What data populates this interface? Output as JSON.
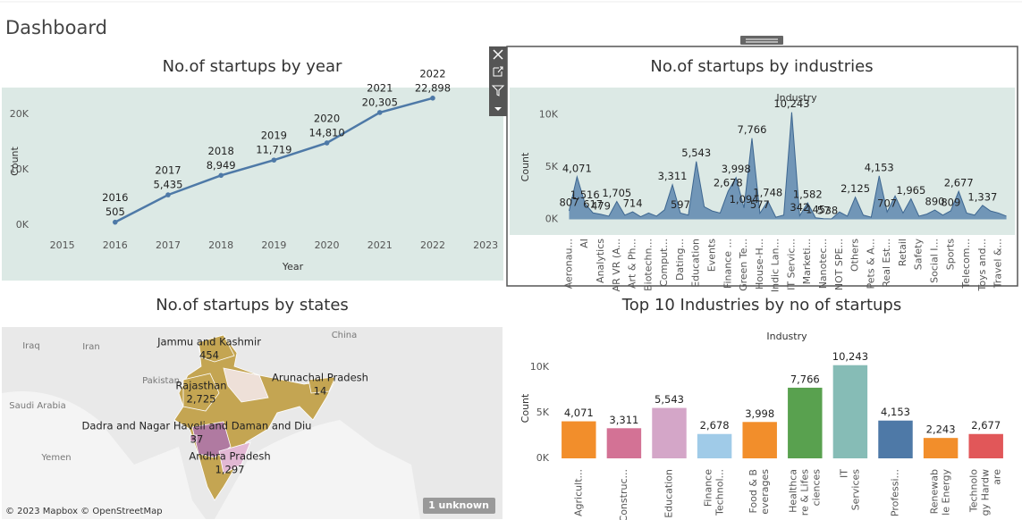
{
  "title": "Dashboard",
  "chart_data": [
    {
      "type": "line",
      "title": "No.of startups by year",
      "x_label": "Year",
      "y_label": "Count",
      "x": [
        2016,
        2017,
        2018,
        2019,
        2020,
        2021,
        2022
      ],
      "values": [
        505,
        5435,
        8949,
        11719,
        14810,
        20305,
        22898
      ],
      "value_labels": [
        "505",
        "5,435",
        "8,949",
        "11,719",
        "14,810",
        "20,305",
        "22,898"
      ],
      "color": "#4e79a7",
      "background": "#dce9e5",
      "xlim": [
        2014.5,
        2023.2
      ],
      "xticks": [
        2015,
        2016,
        2017,
        2018,
        2019,
        2020,
        2021,
        2022,
        2023
      ],
      "ylim": [
        -1000,
        24000
      ],
      "yticks": [
        {
          "value": 0,
          "label": "0K"
        },
        {
          "value": 10000,
          "label": "10K"
        },
        {
          "value": 20000,
          "label": "20K"
        }
      ],
      "grid": false
    },
    {
      "type": "area",
      "title": "No.of startups by industries",
      "header": "Industry",
      "y_label": "Count",
      "categories": [
        "Aeronau...",
        null,
        "AI",
        null,
        "Analytics",
        null,
        "AR VR (A...",
        null,
        "Art & Ph...",
        null,
        "Biotechn...",
        null,
        "Comput...",
        null,
        "Dating...",
        null,
        "Education",
        null,
        "Events",
        null,
        "Finance ...",
        null,
        "Green Te...",
        null,
        "House-H...",
        null,
        "Indic Lan...",
        null,
        "IT Servic...",
        null,
        "Marketi...",
        null,
        "Nanotec...",
        null,
        "NOT SPE...",
        null,
        "Others",
        null,
        "Pets & A...",
        null,
        "Real Est...",
        null,
        "Retail",
        null,
        "Safety",
        null,
        "Social I...",
        null,
        "Sports",
        null,
        "Telecom...",
        null,
        "Toys and...",
        null,
        "Travel &...",
        null
      ],
      "values": [
        807,
        4071,
        1516,
        617,
        479,
        300,
        1705,
        400,
        714,
        250,
        600,
        300,
        900,
        3311,
        597,
        400,
        5543,
        1200,
        800,
        600,
        2678,
        3998,
        1094,
        7766,
        577,
        1748,
        200,
        400,
        10243,
        342,
        1582,
        145,
        57,
        38,
        700,
        300,
        2125,
        400,
        200,
        4153,
        707,
        2243,
        600,
        1965,
        300,
        500,
        890,
        400,
        809,
        2677,
        600,
        400,
        1337,
        800,
        600,
        300
      ],
      "value_labels": [
        "807",
        "4,071",
        "1,516",
        "617",
        "479",
        null,
        "1,705",
        null,
        "714",
        null,
        null,
        null,
        null,
        "3,311",
        "597",
        null,
        "5,543",
        null,
        null,
        null,
        "2,678",
        "3,998",
        "1,094",
        "7,766",
        "577",
        "1,748",
        null,
        null,
        "10,243",
        "342",
        "1,582",
        "145",
        "57",
        "38",
        null,
        null,
        "2,125",
        null,
        null,
        "4,153",
        "707",
        null,
        null,
        "1,965",
        null,
        null,
        "890",
        null,
        "809",
        "2,677",
        null,
        null,
        "1,337",
        null,
        null,
        null
      ],
      "color": "#4e79a7",
      "background": "#dce9e5",
      "ylim": [
        -1500,
        11500
      ],
      "yticks": [
        {
          "value": 0,
          "label": "0K"
        },
        {
          "value": 5000,
          "label": "5K"
        },
        {
          "value": 10000,
          "label": "10K"
        }
      ],
      "grid": false
    },
    {
      "type": "map",
      "title": "No.of startups by states",
      "states": [
        {
          "name": "Jammu and Kashmir",
          "value": 454,
          "value_label": "454",
          "color": "#c4a552"
        },
        {
          "name": "Rajasthan",
          "value": 2725,
          "value_label": "2,725",
          "color": "#c4a552"
        },
        {
          "name": "Arunachal Pradesh",
          "value": 14,
          "value_label": "14",
          "color": "#c4a552"
        },
        {
          "name": "Dadra and Nagar Haveli and Daman and Diu",
          "value": 37,
          "value_label": "37",
          "color": "#b07aa1"
        },
        {
          "name": "Andhra Pradesh",
          "value": 1297,
          "value_label": "1,297",
          "color": "#e2b8d4"
        }
      ],
      "places": [
        "Iraq",
        "Iran",
        "Pakistan",
        "China",
        "Saudi Arabia",
        "Yemen"
      ],
      "attribution": "© 2023 Mapbox © OpenStreetMap",
      "unknown": "1 unknown"
    },
    {
      "type": "bar",
      "title": "Top 10 Industries by no of startups",
      "header": "Industry",
      "y_label": "Count",
      "categories": [
        [
          "Agricult..."
        ],
        [
          "Construc..."
        ],
        [
          "Education"
        ],
        [
          "Finance",
          "Technol..."
        ],
        [
          "Food & B",
          "everages"
        ],
        [
          "Healthca",
          "re & Lifes",
          "ciences"
        ],
        [
          "IT",
          "Services"
        ],
        [
          "Professi..."
        ],
        [
          "Renewab",
          "le Energy"
        ],
        [
          "Technolo",
          "gy Hardw",
          "are"
        ]
      ],
      "values": [
        4071,
        3311,
        5543,
        2678,
        3998,
        7766,
        10243,
        4153,
        2243,
        2677
      ],
      "value_labels": [
        "4,071",
        "3,311",
        "5,543",
        "2,678",
        "3,998",
        "7,766",
        "10,243",
        "4,153",
        "2,243",
        "2,677"
      ],
      "colors": [
        "#f28e2b",
        "#d37295",
        "#d4a6c8",
        "#a0cbe8",
        "#f28e2b",
        "#59a14f",
        "#86bcb6",
        "#4e79a7",
        "#f28e2b",
        "#e15759"
      ],
      "ylim": [
        0,
        11000
      ],
      "yticks": [
        {
          "value": 0,
          "label": "0K"
        },
        {
          "value": 5000,
          "label": "5K"
        },
        {
          "value": 10000,
          "label": "10K"
        }
      ],
      "grid": false
    }
  ]
}
